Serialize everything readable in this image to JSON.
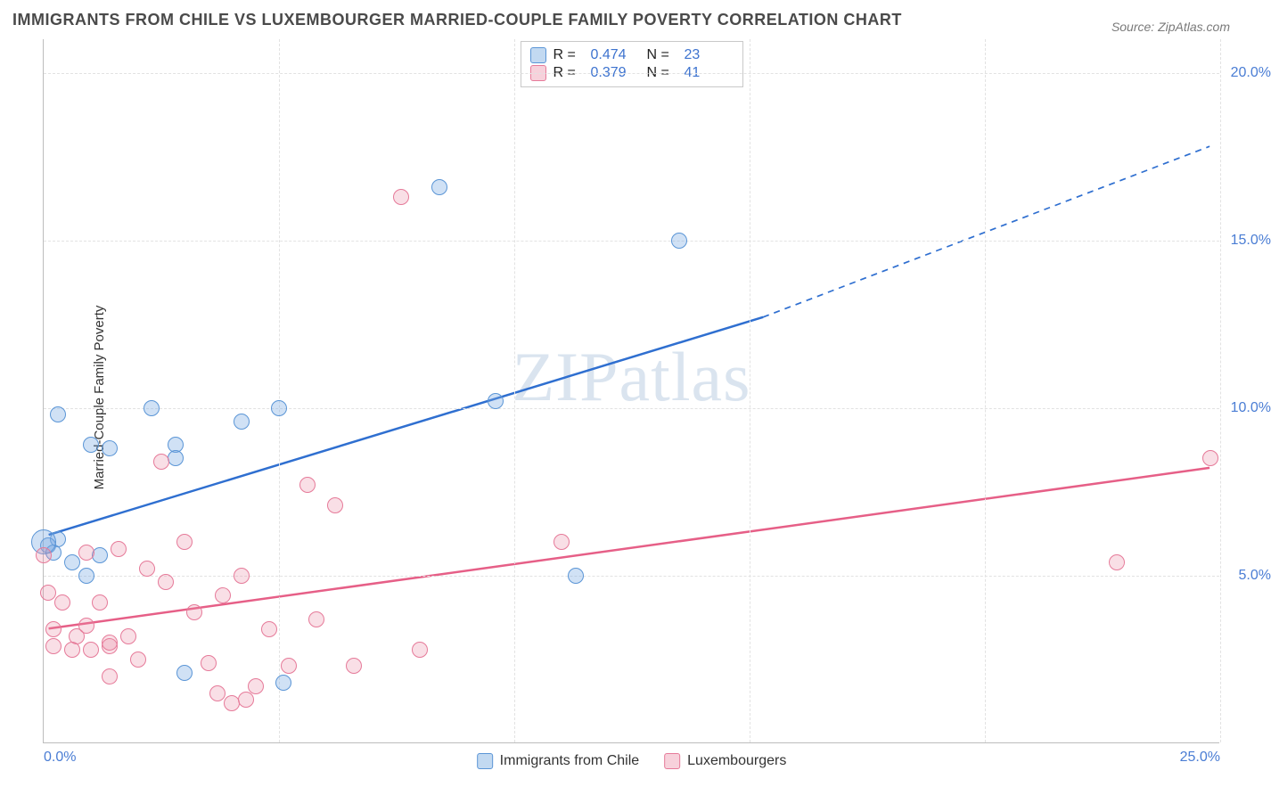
{
  "title": "IMMIGRANTS FROM CHILE VS LUXEMBOURGER MARRIED-COUPLE FAMILY POVERTY CORRELATION CHART",
  "source": "Source: ZipAtlas.com",
  "watermark": "ZIPatlas",
  "ylabel": "Married-Couple Family Poverty",
  "chart": {
    "type": "scatter",
    "xlim": [
      0,
      25
    ],
    "ylim": [
      0,
      21
    ],
    "x_ticks": [
      {
        "v": 0,
        "label": "0.0%",
        "align": "left"
      },
      {
        "v": 25,
        "label": "25.0%",
        "align": "right"
      }
    ],
    "y_ticks": [
      {
        "v": 5,
        "label": "5.0%"
      },
      {
        "v": 10,
        "label": "10.0%"
      },
      {
        "v": 15,
        "label": "15.0%"
      },
      {
        "v": 20,
        "label": "20.0%"
      }
    ],
    "x_gridlines": [
      5,
      10,
      15,
      20,
      25
    ],
    "grid_color": "#e2e2e2",
    "background_color": "#ffffff",
    "axis_color": "#bdbdbd",
    "tick_color": "#4a7dd4",
    "point_radius": 9,
    "series": [
      {
        "key": "s1",
        "label": "Immigrants from Chile",
        "fill": "rgba(120,170,225,0.35)",
        "stroke": "#5a95d6",
        "r_value": "0.474",
        "n_value": "23",
        "trend": {
          "color": "#2f6fd0",
          "width": 2.5,
          "x1": 0.1,
          "y1": 6.2,
          "x2": 15.3,
          "y2": 12.7,
          "extend_x2": 24.8,
          "extend_y2": 17.8,
          "dash": "7,6"
        },
        "points": [
          {
            "x": 0.3,
            "y": 9.8
          },
          {
            "x": 0.3,
            "y": 6.1
          },
          {
            "x": 0.1,
            "y": 5.9
          },
          {
            "x": 0.2,
            "y": 5.7
          },
          {
            "x": 0.0,
            "y": 6.0,
            "r": 14
          },
          {
            "x": 0.6,
            "y": 5.4
          },
          {
            "x": 0.9,
            "y": 5.0
          },
          {
            "x": 1.0,
            "y": 8.9
          },
          {
            "x": 1.4,
            "y": 8.8
          },
          {
            "x": 1.2,
            "y": 5.6
          },
          {
            "x": 2.3,
            "y": 10.0
          },
          {
            "x": 2.8,
            "y": 8.9
          },
          {
            "x": 2.8,
            "y": 8.5
          },
          {
            "x": 3.0,
            "y": 2.1
          },
          {
            "x": 4.2,
            "y": 9.6
          },
          {
            "x": 5.1,
            "y": 1.8
          },
          {
            "x": 5.0,
            "y": 10.0
          },
          {
            "x": 8.4,
            "y": 16.6
          },
          {
            "x": 9.6,
            "y": 10.2
          },
          {
            "x": 11.3,
            "y": 5.0
          },
          {
            "x": 13.5,
            "y": 15.0
          }
        ]
      },
      {
        "key": "s2",
        "label": "Luxembourgers",
        "fill": "rgba(235,140,165,0.28)",
        "stroke": "#e67a99",
        "r_value": "0.379",
        "n_value": "41",
        "trend": {
          "color": "#e65f87",
          "width": 2.5,
          "x1": 0.1,
          "y1": 3.4,
          "x2": 24.8,
          "y2": 8.2
        },
        "points": [
          {
            "x": 0.0,
            "y": 5.6
          },
          {
            "x": 0.1,
            "y": 4.5
          },
          {
            "x": 0.2,
            "y": 3.4
          },
          {
            "x": 0.2,
            "y": 2.9
          },
          {
            "x": 0.4,
            "y": 4.2
          },
          {
            "x": 0.6,
            "y": 2.8
          },
          {
            "x": 0.7,
            "y": 3.2
          },
          {
            "x": 0.9,
            "y": 5.7
          },
          {
            "x": 0.9,
            "y": 3.5
          },
          {
            "x": 1.0,
            "y": 2.8
          },
          {
            "x": 1.2,
            "y": 4.2
          },
          {
            "x": 1.4,
            "y": 2.0
          },
          {
            "x": 1.4,
            "y": 2.9
          },
          {
            "x": 1.4,
            "y": 3.0
          },
          {
            "x": 1.6,
            "y": 5.8
          },
          {
            "x": 1.8,
            "y": 3.2
          },
          {
            "x": 2.0,
            "y": 2.5
          },
          {
            "x": 2.2,
            "y": 5.2
          },
          {
            "x": 2.5,
            "y": 8.4
          },
          {
            "x": 2.6,
            "y": 4.8
          },
          {
            "x": 3.0,
            "y": 6.0
          },
          {
            "x": 3.2,
            "y": 3.9
          },
          {
            "x": 3.5,
            "y": 2.4
          },
          {
            "x": 3.7,
            "y": 1.5
          },
          {
            "x": 3.8,
            "y": 4.4
          },
          {
            "x": 4.0,
            "y": 1.2
          },
          {
            "x": 4.2,
            "y": 5.0
          },
          {
            "x": 4.3,
            "y": 1.3
          },
          {
            "x": 4.5,
            "y": 1.7
          },
          {
            "x": 4.8,
            "y": 3.4
          },
          {
            "x": 5.2,
            "y": 2.3
          },
          {
            "x": 5.6,
            "y": 7.7
          },
          {
            "x": 5.8,
            "y": 3.7
          },
          {
            "x": 6.2,
            "y": 7.1
          },
          {
            "x": 6.6,
            "y": 2.3
          },
          {
            "x": 7.6,
            "y": 16.3
          },
          {
            "x": 8.0,
            "y": 2.8
          },
          {
            "x": 11.0,
            "y": 6.0
          },
          {
            "x": 22.8,
            "y": 5.4
          },
          {
            "x": 24.8,
            "y": 8.5
          }
        ]
      }
    ]
  },
  "legend_top": {
    "rlabel": "R =",
    "nlabel": "N ="
  }
}
